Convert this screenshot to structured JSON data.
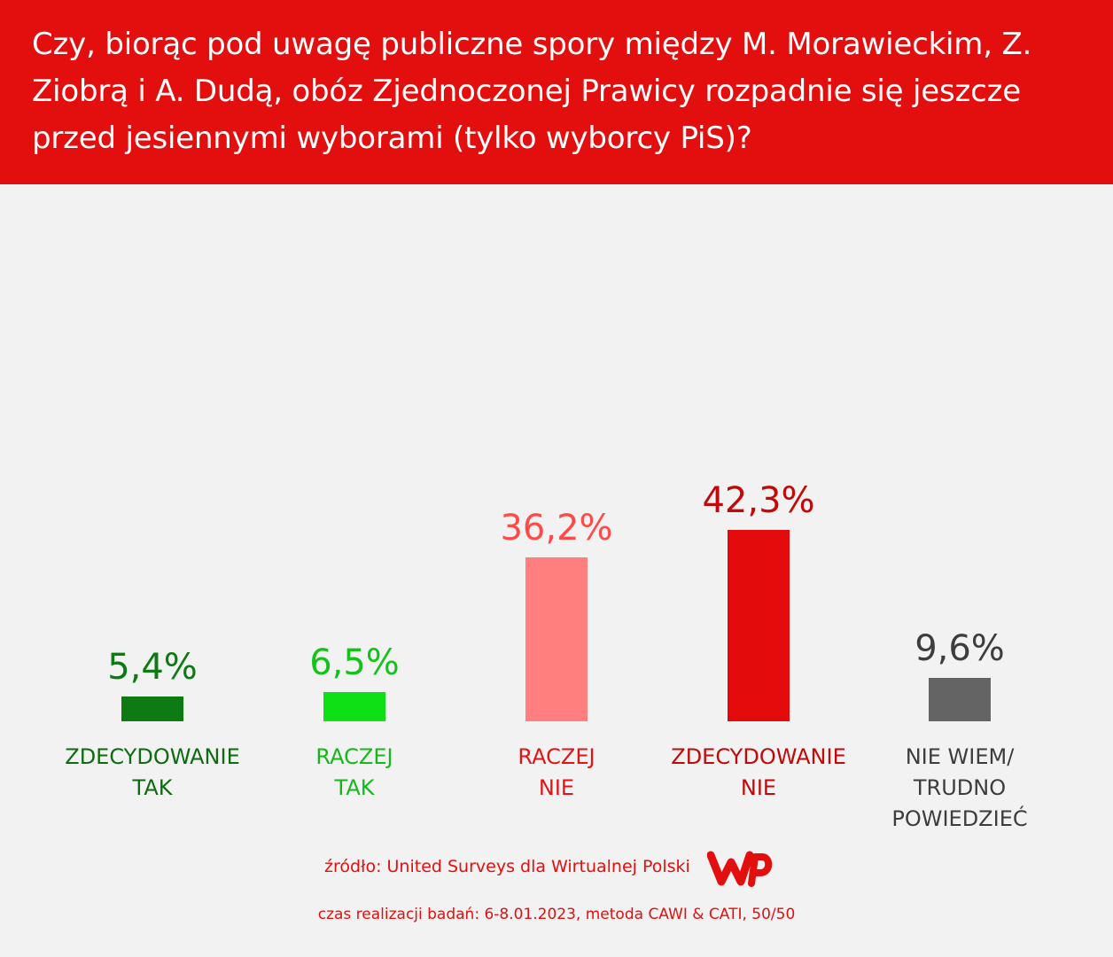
{
  "header": {
    "title": "Czy, biorąc pod uwagę publiczne spory między M. Morawieckim, Z. Ziobrą i A. Dudą, obóz Zjednoczonej Prawicy rozpadnie się jeszcze przed jesiennymi wyborami (tylko wyborcy PiS)?"
  },
  "colors": {
    "header_bg": "#e30f0f",
    "background": "#f2f2f2",
    "text_red": "#e30f0f"
  },
  "chart_data": {
    "type": "bar",
    "title": "Czy, biorąc pod uwagę publiczne spory między M. Morawieckim, Z. Ziobrą i A. Dudą, obóz Zjednoczonej Prawicy rozpadnie się jeszcze przed jesiennymi wyborami (tylko wyborcy PiS)?",
    "categories": [
      "ZDECYDOWANIE\nTAK",
      "RACZEJ\nTAK",
      "RACZEJ\nNIE",
      "ZDECYDOWANIE\nNIE",
      "NIE WIEM/\nTRUDNO\nPOWIEDZIEĆ"
    ],
    "values": [
      5.4,
      6.5,
      36.2,
      42.3,
      9.6
    ],
    "value_labels": [
      "5,4%",
      "6,5%",
      "36,2%",
      "42,3%",
      "9,6%"
    ],
    "bar_colors": [
      "#0d7a12",
      "#0de114",
      "#ff7f7f",
      "#e30b0b",
      "#646464"
    ],
    "label_colors": [
      "#0d6b10",
      "#15b81a",
      "#e31414",
      "#c20808",
      "#3d3d3d"
    ],
    "value_label_colors": [
      "#0d7a12",
      "#15c21a",
      "#ff4a4a",
      "#c20808",
      "#3d3d3d"
    ],
    "unit": "%",
    "grid": false,
    "legend": "none"
  },
  "footer": {
    "source": "źródło: United Surveys dla Wirtualnej Polski",
    "logo": "wp-logo",
    "method": "czas realizacji badań: 6-8.01.2023, metoda CAWI & CATI, 50/50"
  }
}
